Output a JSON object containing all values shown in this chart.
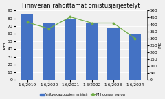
{
  "title": "Finnveran rahoittamat omistusjärjestelyt",
  "categories": [
    "1-6/2019",
    "1-6/2020",
    "1-6/2021",
    "1-6/2022",
    "1-6/2023",
    "1-6/2024"
  ],
  "bar_values": [
    85,
    74,
    80,
    74,
    68,
    59
  ],
  "line_values": [
    415,
    370,
    455,
    410,
    410,
    300
  ],
  "bar_color": "#4472c4",
  "line_color": "#70ad47",
  "ylabel_left": "lkm",
  "ylabel_right": "M€",
  "ylim_left": [
    0,
    90
  ],
  "ylim_right": [
    0,
    500
  ],
  "yticks_left": [
    0,
    10,
    20,
    30,
    40,
    50,
    60,
    70,
    80,
    90
  ],
  "yticks_right": [
    0,
    50,
    100,
    150,
    200,
    250,
    300,
    350,
    400,
    450,
    500
  ],
  "legend_bar": "Yrityskauppojen määrä",
  "legend_line": "Miljoonaa euroa",
  "background_color": "#f0f0f0",
  "title_fontsize": 6.0,
  "tick_fontsize": 4.5,
  "xlabel_fontsize": 4.2
}
